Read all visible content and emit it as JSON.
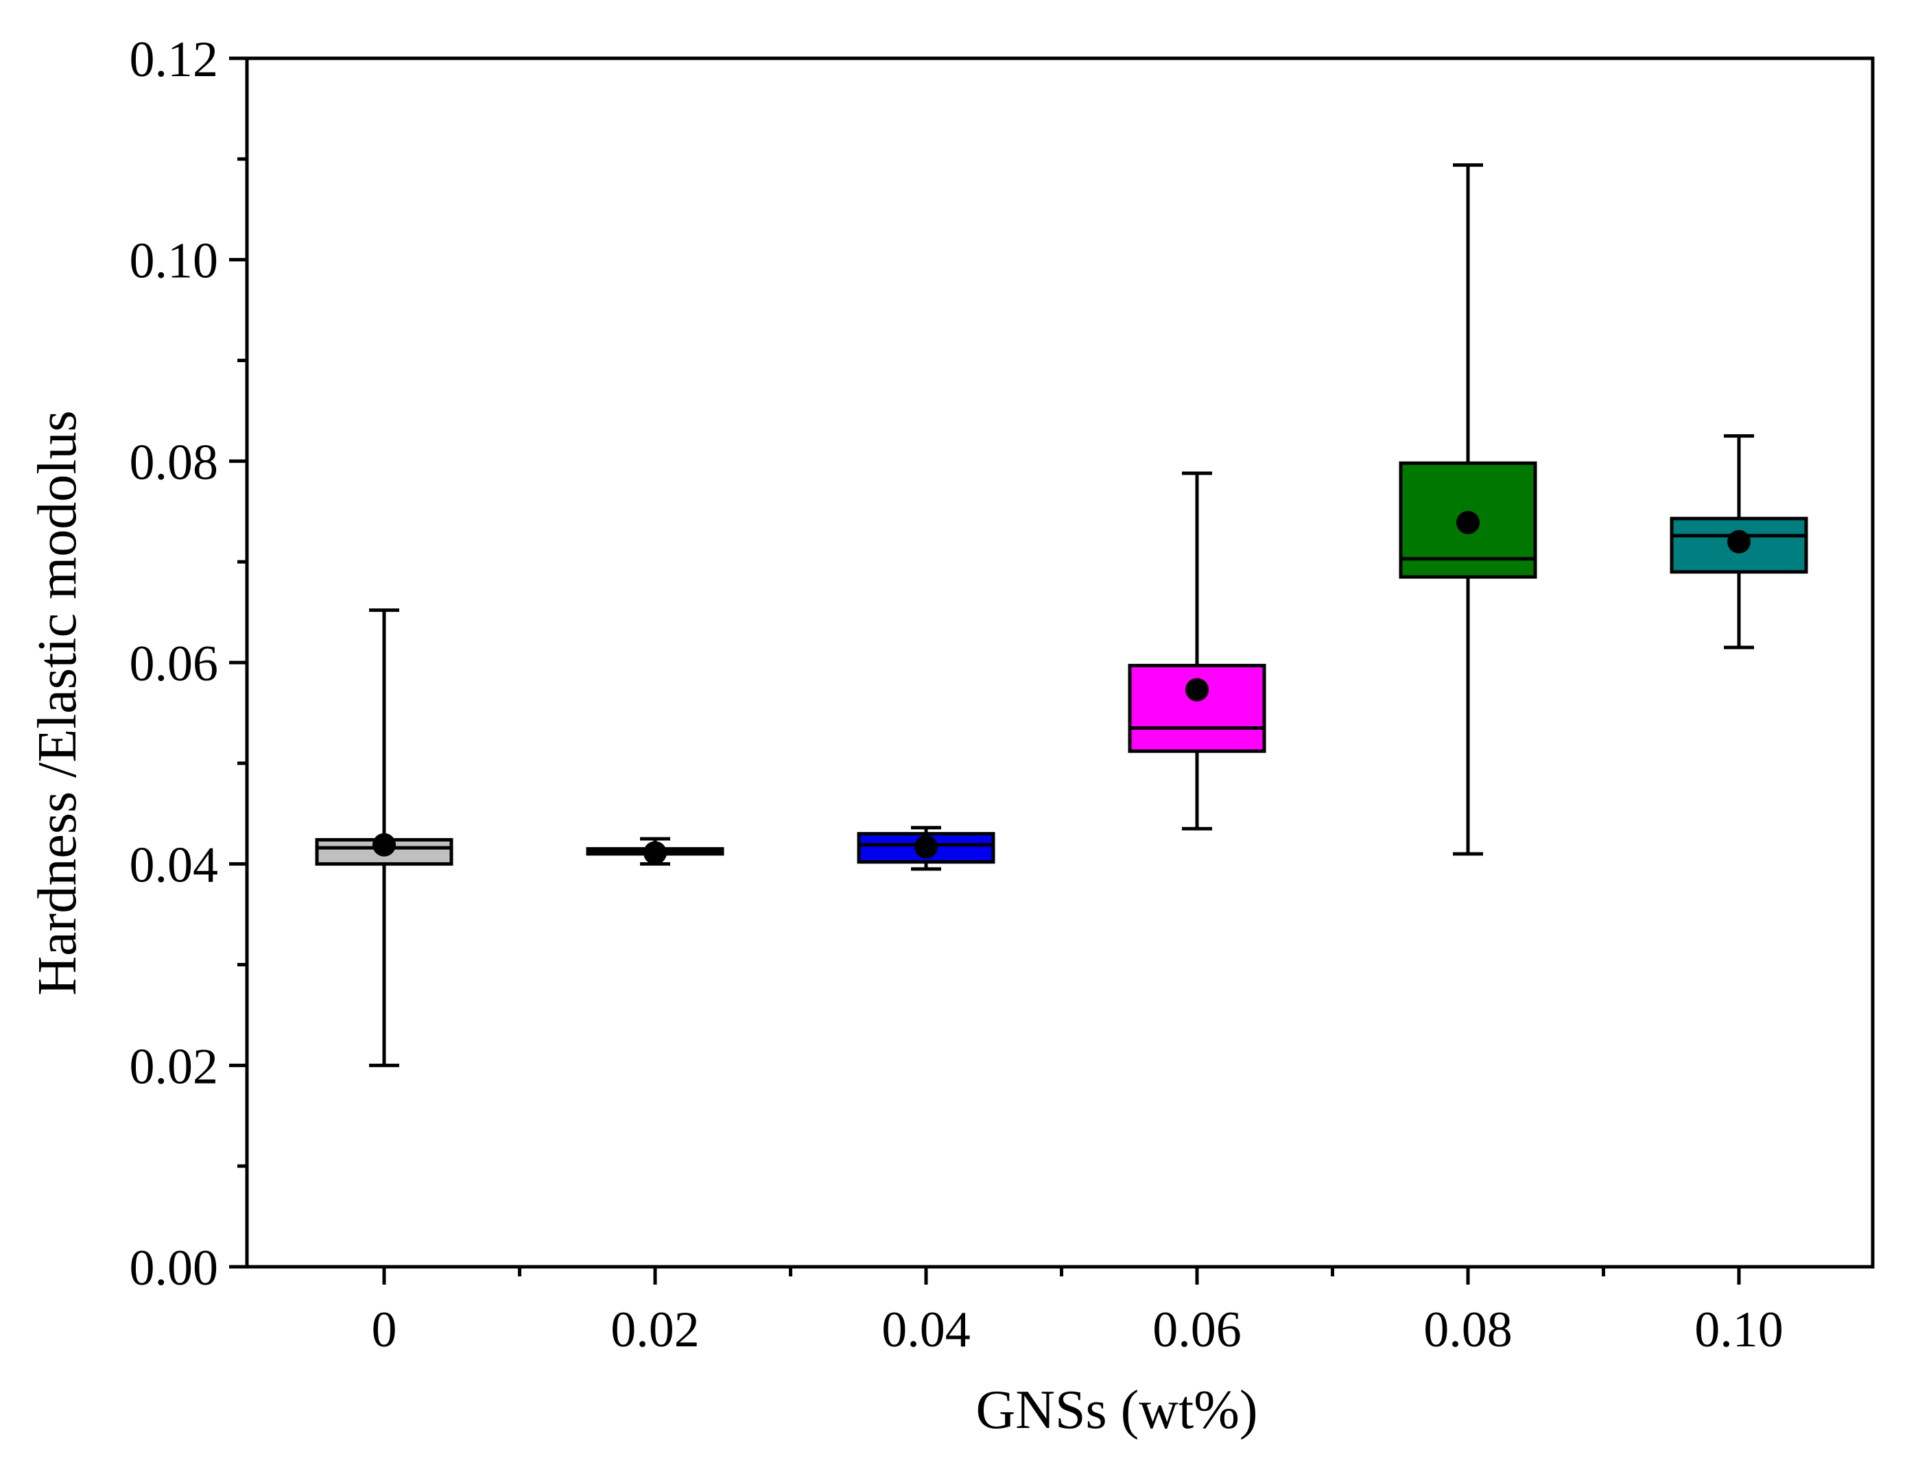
{
  "chart_data": {
    "type": "boxplot",
    "title": "",
    "xlabel": "GNSs (wt%)",
    "ylabel": "Hardness /Elastic modolus",
    "ylim": [
      0,
      0.12
    ],
    "yticks": [
      "0.00",
      "0.02",
      "0.04",
      "0.06",
      "0.08",
      "0.10",
      "0.12"
    ],
    "ytick_values": [
      0,
      0.02,
      0.04,
      0.06,
      0.08,
      0.1,
      0.12
    ],
    "categories": [
      "0",
      "0.02",
      "0.04",
      "0.06",
      "0.08",
      "0.10"
    ],
    "boxes": [
      {
        "category": "0",
        "min": 0.02,
        "q1": 0.04,
        "median": 0.0416,
        "q3": 0.0424,
        "max": 0.0652,
        "mean": 0.0419,
        "color": "#c0c0c0"
      },
      {
        "category": "0.02",
        "min": 0.04,
        "q1": 0.041,
        "median": 0.0413,
        "q3": 0.0415,
        "max": 0.0425,
        "mean": 0.0411,
        "color": "#111111"
      },
      {
        "category": "0.04",
        "min": 0.0395,
        "q1": 0.0402,
        "median": 0.0419,
        "q3": 0.043,
        "max": 0.0436,
        "mean": 0.0417,
        "color": "#0000ee"
      },
      {
        "category": "0.06",
        "min": 0.0435,
        "q1": 0.0512,
        "median": 0.0535,
        "q3": 0.0597,
        "max": 0.0788,
        "mean": 0.0573,
        "color": "#ff00ff"
      },
      {
        "category": "0.08",
        "min": 0.041,
        "q1": 0.0685,
        "median": 0.0703,
        "q3": 0.0798,
        "max": 0.1094,
        "mean": 0.0739,
        "color": "#007700"
      },
      {
        "category": "0.10",
        "min": 0.0615,
        "q1": 0.069,
        "median": 0.0726,
        "q3": 0.0743,
        "max": 0.0825,
        "mean": 0.072,
        "color": "#007e80"
      }
    ],
    "grid": false,
    "legend": "none"
  }
}
